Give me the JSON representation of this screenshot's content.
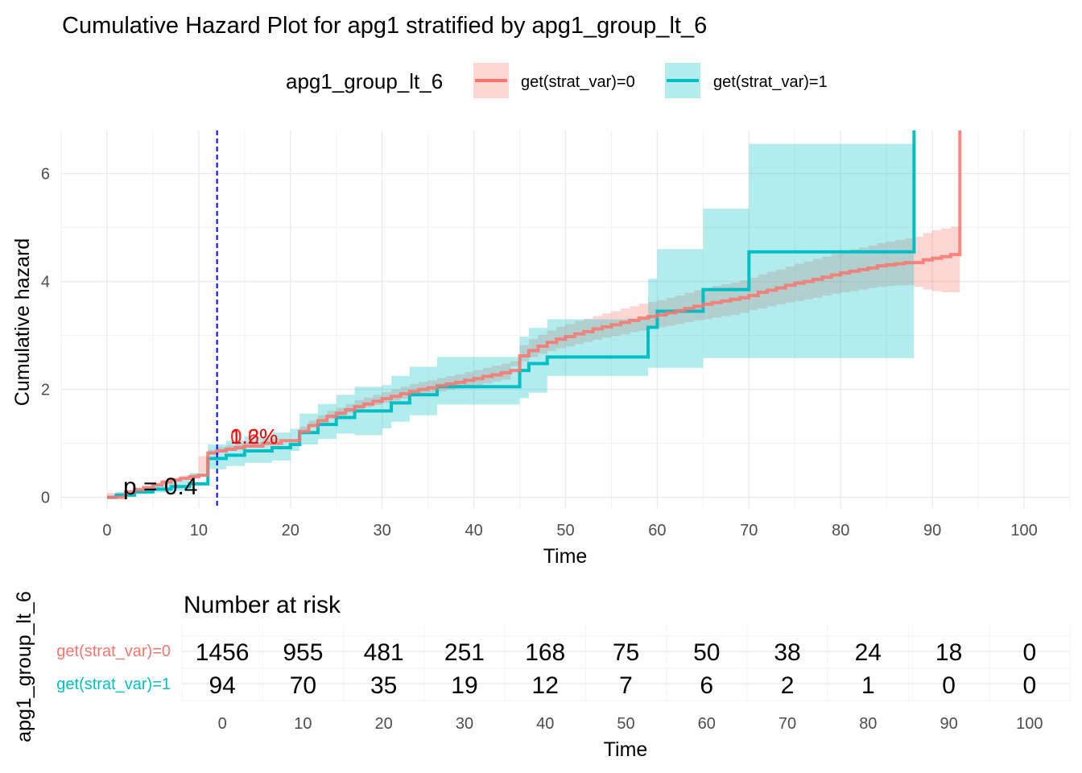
{
  "chart_data": {
    "type": "line",
    "title": "Cumulative Hazard Plot for apg1 stratified by apg1_group_lt_6",
    "xlabel": "Time",
    "ylabel": "Cumulative hazard",
    "xlim": [
      -5,
      105
    ],
    "ylim": [
      -0.2,
      6.8
    ],
    "x_ticks": [
      0,
      10,
      20,
      30,
      40,
      50,
      60,
      70,
      80,
      90,
      100
    ],
    "y_ticks": [
      0,
      2,
      4,
      6
    ],
    "grid": true,
    "legend": {
      "title": "apg1_group_lt_6",
      "position": "top",
      "entries": [
        "get(strat_var)=0",
        "get(strat_var)=1"
      ]
    },
    "series": [
      {
        "name": "get(strat_var)=0",
        "color": "#F8766D",
        "ribbon_color": "#F8766D",
        "step_x": [
          0,
          2,
          3,
          4,
          5,
          6,
          7,
          8,
          9,
          10,
          11,
          12,
          13,
          14,
          15,
          17,
          19,
          21,
          22,
          23,
          24,
          25,
          26,
          27,
          28,
          29,
          30,
          31,
          32,
          33,
          34,
          35,
          36,
          37,
          38,
          39,
          40,
          41,
          42,
          43,
          44,
          45,
          46,
          47,
          48,
          49,
          50,
          51,
          52,
          53,
          54,
          55,
          56,
          57,
          58,
          59,
          60,
          61,
          62,
          63,
          64,
          65,
          66,
          67,
          68,
          69,
          70,
          71,
          72,
          73,
          74,
          75,
          76,
          77,
          78,
          79,
          80,
          81,
          82,
          83,
          84,
          85,
          86,
          87,
          88,
          89,
          90,
          91,
          92,
          93
        ],
        "step_y": [
          0.0,
          0.1,
          0.14,
          0.18,
          0.23,
          0.28,
          0.32,
          0.35,
          0.38,
          0.41,
          0.82,
          0.86,
          0.89,
          0.92,
          0.95,
          1.0,
          1.05,
          1.22,
          1.33,
          1.42,
          1.5,
          1.56,
          1.62,
          1.68,
          1.73,
          1.78,
          1.83,
          1.87,
          1.92,
          1.96,
          2.0,
          2.03,
          2.07,
          2.1,
          2.13,
          2.17,
          2.2,
          2.24,
          2.27,
          2.31,
          2.35,
          2.62,
          2.72,
          2.8,
          2.87,
          2.93,
          2.98,
          3.03,
          3.07,
          3.12,
          3.16,
          3.2,
          3.24,
          3.28,
          3.32,
          3.35,
          3.38,
          3.42,
          3.46,
          3.5,
          3.54,
          3.58,
          3.61,
          3.64,
          3.67,
          3.7,
          3.74,
          3.8,
          3.84,
          3.88,
          3.93,
          3.97,
          4.0,
          4.04,
          4.08,
          4.12,
          4.16,
          4.19,
          4.22,
          4.25,
          4.29,
          4.31,
          4.33,
          4.35,
          4.35,
          4.4,
          4.43,
          4.46,
          4.5,
          6.8
        ],
        "ci_lower": [
          0.0,
          0.08,
          0.12,
          0.15,
          0.2,
          0.25,
          0.28,
          0.31,
          0.34,
          0.37,
          0.76,
          0.8,
          0.83,
          0.86,
          0.88,
          0.93,
          0.98,
          1.13,
          1.24,
          1.33,
          1.4,
          1.46,
          1.51,
          1.57,
          1.62,
          1.67,
          1.71,
          1.75,
          1.79,
          1.83,
          1.87,
          1.9,
          1.94,
          1.96,
          1.99,
          2.02,
          2.05,
          2.08,
          2.11,
          2.15,
          2.18,
          2.43,
          2.52,
          2.6,
          2.66,
          2.71,
          2.76,
          2.8,
          2.84,
          2.88,
          2.92,
          2.96,
          2.99,
          3.02,
          3.06,
          3.09,
          3.12,
          3.15,
          3.18,
          3.21,
          3.25,
          3.28,
          3.3,
          3.33,
          3.36,
          3.38,
          3.42,
          3.47,
          3.5,
          3.54,
          3.58,
          3.61,
          3.64,
          3.67,
          3.7,
          3.74,
          3.77,
          3.8,
          3.82,
          3.85,
          3.88,
          3.9,
          3.92,
          3.93,
          3.93,
          3.9,
          3.85,
          3.82,
          3.8,
          3.8
        ],
        "ci_upper": [
          0.0,
          0.13,
          0.17,
          0.21,
          0.27,
          0.32,
          0.36,
          0.4,
          0.43,
          0.46,
          0.88,
          0.93,
          0.96,
          0.99,
          1.02,
          1.08,
          1.13,
          1.31,
          1.42,
          1.52,
          1.6,
          1.66,
          1.73,
          1.8,
          1.85,
          1.9,
          1.95,
          2.0,
          2.05,
          2.1,
          2.14,
          2.17,
          2.21,
          2.25,
          2.28,
          2.32,
          2.36,
          2.4,
          2.44,
          2.48,
          2.52,
          2.82,
          2.93,
          3.01,
          3.09,
          3.16,
          3.21,
          3.27,
          3.31,
          3.36,
          3.41,
          3.45,
          3.5,
          3.54,
          3.59,
          3.62,
          3.65,
          3.7,
          3.74,
          3.79,
          3.84,
          3.88,
          3.92,
          3.95,
          3.98,
          4.02,
          4.07,
          4.13,
          4.18,
          4.22,
          4.28,
          4.33,
          4.37,
          4.42,
          4.46,
          4.51,
          4.56,
          4.6,
          4.63,
          4.67,
          4.71,
          4.74,
          4.77,
          4.8,
          4.83,
          4.9,
          4.95,
          4.98,
          5.02,
          5.02
        ]
      },
      {
        "name": "get(strat_var)=1",
        "color": "#00BFC4",
        "ribbon_color": "#00BFC4",
        "step_x": [
          0,
          1,
          3,
          5,
          7,
          9,
          11,
          13,
          15,
          18,
          20,
          21,
          23,
          25,
          27,
          30,
          31,
          33,
          36,
          45,
          46,
          48,
          59,
          60,
          61,
          65,
          70,
          88
        ],
        "step_y": [
          0.0,
          0.04,
          0.1,
          0.15,
          0.2,
          0.25,
          0.72,
          0.78,
          0.86,
          0.92,
          0.98,
          1.2,
          1.35,
          1.48,
          1.6,
          1.6,
          1.75,
          1.9,
          2.05,
          2.35,
          2.48,
          2.6,
          3.15,
          3.45,
          3.45,
          3.85,
          4.55,
          6.8
        ],
        "ci_lower": [
          0.0,
          0.0,
          0.03,
          0.06,
          0.09,
          0.12,
          0.45,
          0.52,
          0.58,
          0.64,
          0.68,
          0.86,
          0.98,
          1.08,
          1.18,
          1.15,
          1.28,
          1.4,
          1.52,
          1.72,
          1.84,
          1.94,
          2.25,
          2.4,
          2.4,
          2.4,
          2.58,
          2.58
        ],
        "ci_upper": [
          0.0,
          0.1,
          0.18,
          0.25,
          0.32,
          0.38,
          0.98,
          1.05,
          1.13,
          1.2,
          1.27,
          1.55,
          1.73,
          1.9,
          2.05,
          2.08,
          2.25,
          2.42,
          2.6,
          2.98,
          3.14,
          3.3,
          4.05,
          4.6,
          4.6,
          5.35,
          6.55,
          6.55
        ]
      }
    ],
    "annotations": {
      "p_value": "p = 0.4",
      "percent_labels": [
        "1.2%",
        "0.6%"
      ],
      "vline_x": 12
    }
  },
  "risk_table": {
    "title": "Number at risk",
    "ylabel": "apg1_group_lt_6",
    "xlabel": "Time",
    "times": [
      0,
      10,
      20,
      30,
      40,
      50,
      60,
      70,
      80,
      90,
      100
    ],
    "xlim": [
      -5,
      105
    ],
    "rows": [
      {
        "label": "get(strat_var)=0",
        "color": "#F8766D",
        "values": [
          "1456",
          "955",
          "481",
          "251",
          "168",
          "75",
          "50",
          "38",
          "24",
          "18",
          "0"
        ]
      },
      {
        "label": "get(strat_var)=1",
        "color": "#00BFC4",
        "values": [
          "94",
          "70",
          "35",
          "19",
          "12",
          "7",
          "6",
          "2",
          "1",
          "0",
          "0"
        ]
      }
    ]
  }
}
